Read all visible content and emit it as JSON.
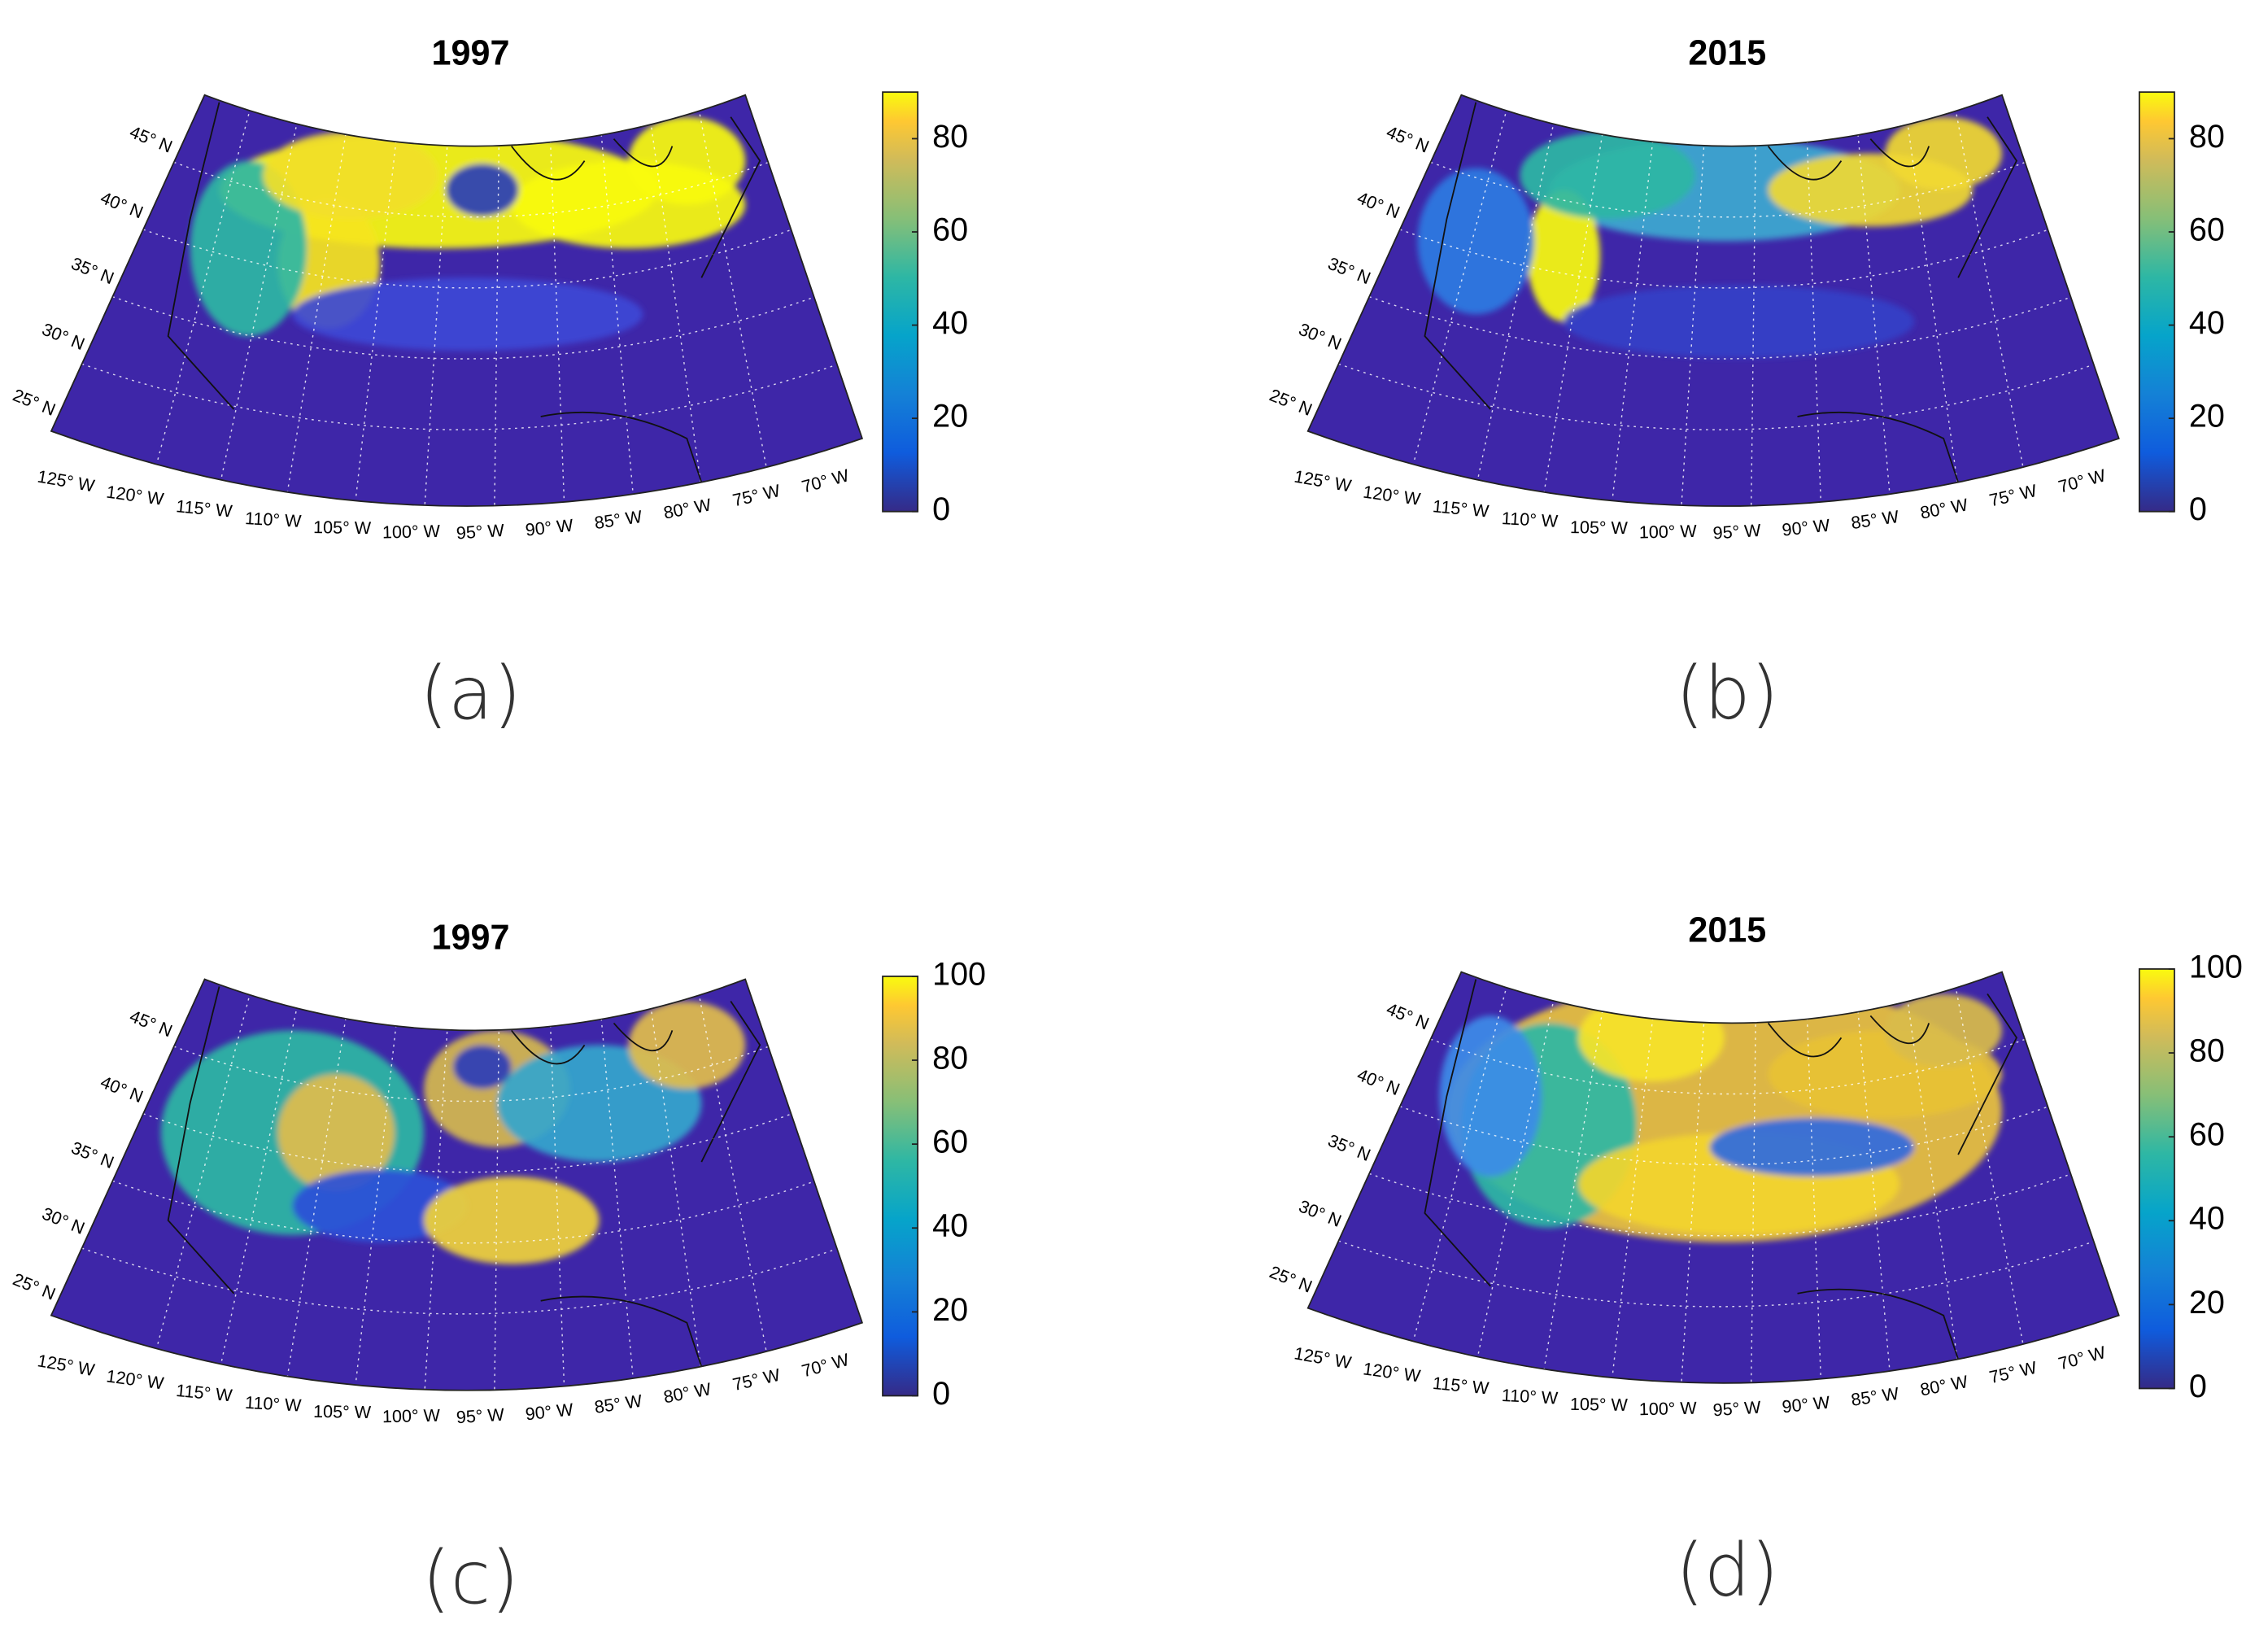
{
  "panels": [
    {
      "title": "1997",
      "label": "(a)",
      "colorbar": {
        "lim": [
          0,
          90
        ],
        "ticks": [
          0,
          20,
          40,
          60,
          80
        ]
      },
      "lat_labels": [
        "45° N",
        "40° N",
        "35° N",
        "30° N",
        "25° N"
      ],
      "lon_labels": [
        "125° W",
        "120° W",
        "115° W",
        "110° W",
        "105° W",
        "100° W",
        "95° W",
        "90° W",
        "85° W",
        "80° W",
        "75° W",
        "70° W"
      ]
    },
    {
      "title": "2015",
      "label": "(b)",
      "colorbar": {
        "lim": [
          0,
          90
        ],
        "ticks": [
          0,
          20,
          40,
          60,
          80
        ]
      },
      "lat_labels": [
        "45° N",
        "40° N",
        "35° N",
        "30° N",
        "25° N"
      ],
      "lon_labels": [
        "125° W",
        "120° W",
        "115° W",
        "110° W",
        "105° W",
        "100° W",
        "95° W",
        "90° W",
        "85° W",
        "80° W",
        "75° W",
        "70° W"
      ]
    },
    {
      "title": "1997",
      "label": "(c)",
      "colorbar": {
        "lim": [
          0,
          100
        ],
        "ticks": [
          0,
          20,
          40,
          60,
          80,
          100
        ]
      },
      "lat_labels": [
        "45° N",
        "40° N",
        "35° N",
        "30° N",
        "25° N"
      ],
      "lon_labels": [
        "125° W",
        "120° W",
        "115° W",
        "110° W",
        "105° W",
        "100° W",
        "95° W",
        "90° W",
        "85° W",
        "80° W",
        "75° W",
        "70° W"
      ]
    },
    {
      "title": "2015",
      "label": "(d)",
      "colorbar": {
        "lim": [
          0,
          100
        ],
        "ticks": [
          0,
          20,
          40,
          60,
          80,
          100
        ]
      },
      "lat_labels": [
        "45° N",
        "40° N",
        "35° N",
        "30° N",
        "25° N"
      ],
      "lon_labels": [
        "125° W",
        "120° W",
        "115° W",
        "110° W",
        "105° W",
        "100° W",
        "95° W",
        "90° W",
        "85° W",
        "80° W",
        "75° W",
        "70° W"
      ]
    }
  ]
}
